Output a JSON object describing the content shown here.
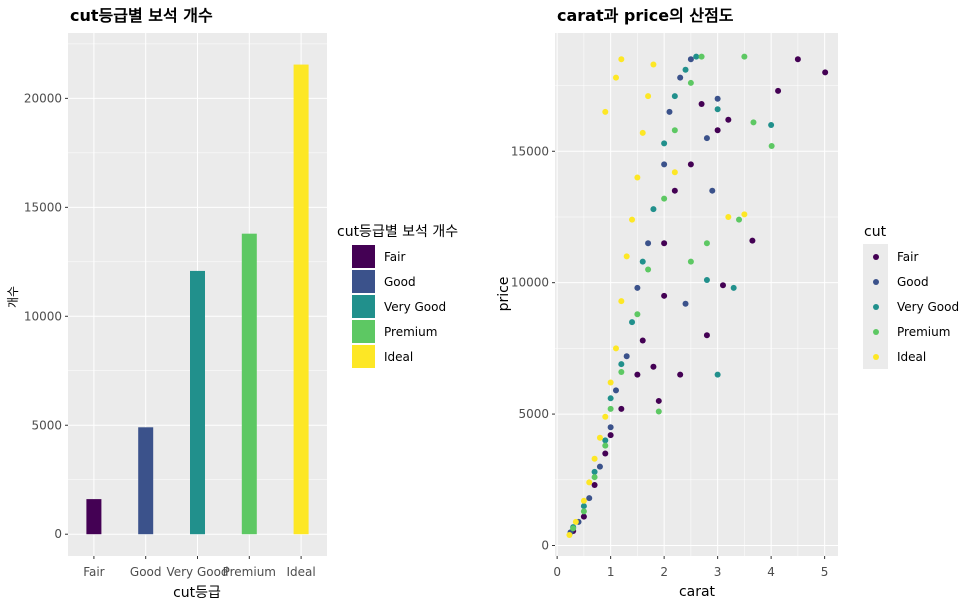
{
  "chart_data": [
    {
      "type": "bar",
      "title": "cut등급별 보석 개수",
      "xlabel": "cut등급",
      "ylabel": "개수",
      "categories": [
        "Fair",
        "Good",
        "Very Good",
        "Premium",
        "Ideal"
      ],
      "values": [
        1610,
        4906,
        12082,
        13791,
        21551
      ],
      "colors": [
        "#440154",
        "#3b528b",
        "#21908c",
        "#5dc863",
        "#fde725"
      ],
      "ylim": [
        -1000,
        23000
      ],
      "yticks": [
        0,
        5000,
        10000,
        15000,
        20000
      ],
      "ytick_labels": [
        "0",
        "5000",
        "10000",
        "15000",
        "20000"
      ],
      "legend": {
        "title": "cut등급별 보석 개수",
        "labels": [
          "Fair",
          "Good",
          "Very Good",
          "Premium",
          "Ideal"
        ],
        "position": "right"
      }
    },
    {
      "type": "scatter",
      "title": "carat과 price의 산점도",
      "xlabel": "carat",
      "ylabel": "price",
      "xlim": [
        -0.04,
        5.25
      ],
      "ylim": [
        -400,
        19500
      ],
      "xticks": [
        0,
        1,
        2,
        3,
        4,
        5
      ],
      "xtick_labels": [
        "0",
        "1",
        "2",
        "3",
        "4",
        "5"
      ],
      "yticks": [
        0,
        5000,
        10000,
        15000
      ],
      "ytick_labels": [
        "0",
        "5000",
        "10000",
        "15000"
      ],
      "series": [
        {
          "name": "Fair",
          "color": "#440154",
          "points": [
            [
              0.3,
              550
            ],
            [
              0.5,
              1100
            ],
            [
              0.7,
              2300
            ],
            [
              0.9,
              3500
            ],
            [
              1.0,
              4200
            ],
            [
              1.2,
              5200
            ],
            [
              1.5,
              6500
            ],
            [
              1.6,
              7800
            ],
            [
              1.8,
              6800
            ],
            [
              2.0,
              9500
            ],
            [
              2.0,
              11500
            ],
            [
              2.2,
              13500
            ],
            [
              2.5,
              14500
            ],
            [
              2.7,
              16800
            ],
            [
              3.0,
              15800
            ],
            [
              3.2,
              16200
            ],
            [
              3.65,
              11600
            ],
            [
              4.13,
              17300
            ],
            [
              4.5,
              18500
            ],
            [
              5.01,
              18000
            ],
            [
              3.1,
              9900
            ],
            [
              2.8,
              8000
            ],
            [
              2.3,
              6500
            ],
            [
              1.9,
              5500
            ]
          ]
        },
        {
          "name": "Good",
          "color": "#3b528b",
          "points": [
            [
              0.25,
              500
            ],
            [
              0.4,
              900
            ],
            [
              0.6,
              1800
            ],
            [
              0.8,
              3000
            ],
            [
              1.0,
              4500
            ],
            [
              1.1,
              5900
            ],
            [
              1.3,
              7200
            ],
            [
              1.5,
              9800
            ],
            [
              1.7,
              11500
            ],
            [
              2.0,
              14500
            ],
            [
              2.1,
              16500
            ],
            [
              2.3,
              17800
            ],
            [
              2.5,
              18500
            ],
            [
              2.8,
              15500
            ],
            [
              3.0,
              17000
            ],
            [
              2.9,
              13500
            ],
            [
              2.4,
              9200
            ]
          ]
        },
        {
          "name": "Very Good",
          "color": "#21908c",
          "points": [
            [
              0.3,
              700
            ],
            [
              0.5,
              1500
            ],
            [
              0.7,
              2800
            ],
            [
              0.9,
              4000
            ],
            [
              1.0,
              5600
            ],
            [
              1.2,
              6900
            ],
            [
              1.4,
              8500
            ],
            [
              1.6,
              10800
            ],
            [
              1.8,
              12800
            ],
            [
              2.0,
              15300
            ],
            [
              2.2,
              17100
            ],
            [
              2.4,
              18100
            ],
            [
              2.6,
              18600
            ],
            [
              3.0,
              16600
            ],
            [
              4.0,
              16000
            ],
            [
              3.0,
              6500
            ],
            [
              2.8,
              10100
            ],
            [
              3.3,
              9800
            ]
          ]
        },
        {
          "name": "Premium",
          "color": "#5dc863",
          "points": [
            [
              0.3,
              650
            ],
            [
              0.5,
              1300
            ],
            [
              0.7,
              2600
            ],
            [
              0.9,
              3800
            ],
            [
              1.0,
              5200
            ],
            [
              1.2,
              6600
            ],
            [
              1.5,
              8800
            ],
            [
              1.7,
              10500
            ],
            [
              2.0,
              13200
            ],
            [
              2.2,
              15800
            ],
            [
              2.5,
              17600
            ],
            [
              2.7,
              18600
            ],
            [
              3.5,
              18600
            ],
            [
              3.67,
              16100
            ],
            [
              4.01,
              15200
            ],
            [
              3.4,
              12400
            ],
            [
              2.5,
              10800
            ],
            [
              2.8,
              11500
            ],
            [
              1.9,
              5100
            ]
          ]
        },
        {
          "name": "Ideal",
          "color": "#fde725",
          "points": [
            [
              0.23,
              400
            ],
            [
              0.35,
              900
            ],
            [
              0.5,
              1700
            ],
            [
              0.6,
              2400
            ],
            [
              0.7,
              3300
            ],
            [
              0.8,
              4100
            ],
            [
              0.9,
              4900
            ],
            [
              1.0,
              6200
            ],
            [
              1.1,
              7500
            ],
            [
              1.2,
              9300
            ],
            [
              1.3,
              11000
            ],
            [
              1.4,
              12400
            ],
            [
              1.5,
              14000
            ],
            [
              1.6,
              15700
            ],
            [
              1.7,
              17100
            ],
            [
              1.8,
              18300
            ],
            [
              1.2,
              18500
            ],
            [
              1.1,
              17800
            ],
            [
              0.9,
              16500
            ],
            [
              3.2,
              12500
            ],
            [
              3.5,
              12600
            ],
            [
              2.2,
              14200
            ]
          ]
        }
      ],
      "legend": {
        "title": "cut",
        "labels": [
          "Fair",
          "Good",
          "Very Good",
          "Premium",
          "Ideal"
        ],
        "position": "right"
      }
    }
  ]
}
